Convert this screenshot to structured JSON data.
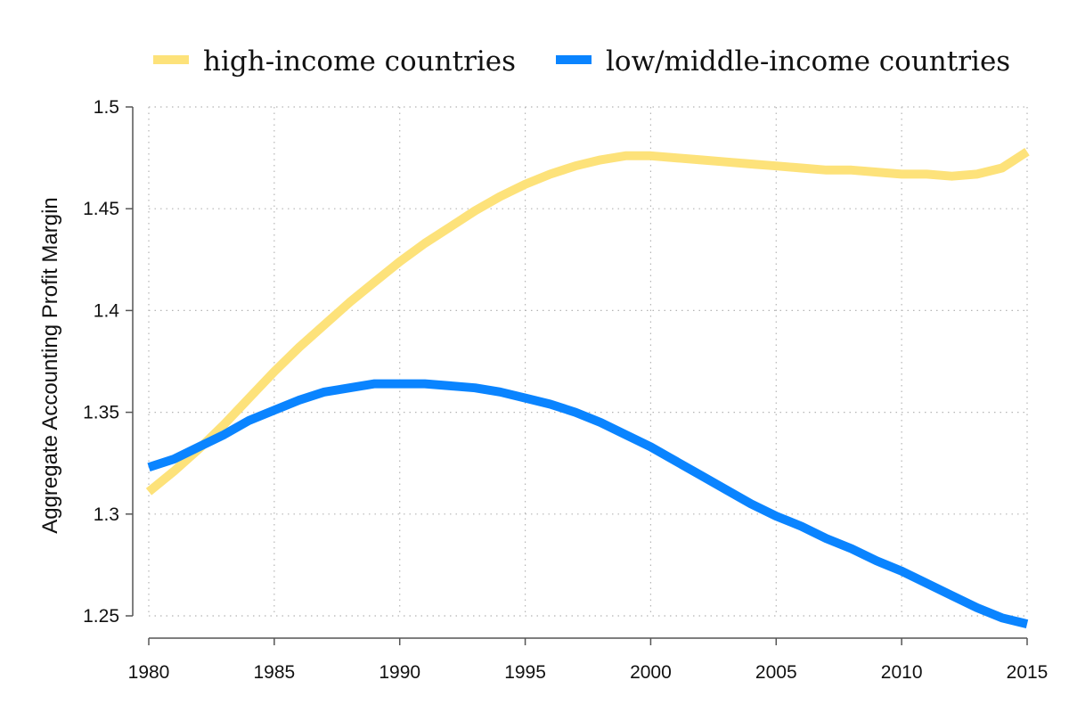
{
  "chart_data": {
    "type": "line",
    "title": "",
    "xlabel": "",
    "ylabel": "Aggregate Accounting Profit Margin",
    "xlim": [
      1980,
      2015
    ],
    "ylim": [
      1.25,
      1.5
    ],
    "x_ticks": [
      1980,
      1985,
      1990,
      1995,
      2000,
      2005,
      2010,
      2015
    ],
    "y_ticks": [
      1.25,
      1.3,
      1.35,
      1.4,
      1.45,
      1.5
    ],
    "x_tick_labels": [
      "1980",
      "1985",
      "1990",
      "1995",
      "2000",
      "2005",
      "2010",
      "2015"
    ],
    "y_tick_labels": [
      "1.25",
      "1.3",
      "1.35",
      "1.4",
      "1.45",
      "1.5"
    ],
    "grid": true,
    "legend_position": "top",
    "x": [
      1980,
      1981,
      1982,
      1983,
      1984,
      1985,
      1986,
      1987,
      1988,
      1989,
      1990,
      1991,
      1992,
      1993,
      1994,
      1995,
      1996,
      1997,
      1998,
      1999,
      2000,
      2001,
      2002,
      2003,
      2004,
      2005,
      2006,
      2007,
      2008,
      2009,
      2010,
      2011,
      2012,
      2013,
      2014,
      2015
    ],
    "series": [
      {
        "name": "high-income countries",
        "color": "#fde27a",
        "values": [
          1.311,
          1.321,
          1.332,
          1.344,
          1.357,
          1.37,
          1.382,
          1.393,
          1.404,
          1.414,
          1.424,
          1.433,
          1.441,
          1.449,
          1.456,
          1.462,
          1.467,
          1.471,
          1.474,
          1.476,
          1.476,
          1.475,
          1.474,
          1.473,
          1.472,
          1.471,
          1.47,
          1.469,
          1.469,
          1.468,
          1.467,
          1.467,
          1.466,
          1.467,
          1.47,
          1.478
        ]
      },
      {
        "name": "low/middle-income countries",
        "color": "#0a84ff",
        "values": [
          1.323,
          1.327,
          1.333,
          1.339,
          1.346,
          1.351,
          1.356,
          1.36,
          1.362,
          1.364,
          1.364,
          1.364,
          1.363,
          1.362,
          1.36,
          1.357,
          1.354,
          1.35,
          1.345,
          1.339,
          1.333,
          1.326,
          1.319,
          1.312,
          1.305,
          1.299,
          1.294,
          1.288,
          1.283,
          1.277,
          1.272,
          1.266,
          1.26,
          1.254,
          1.249,
          1.246
        ]
      }
    ]
  }
}
